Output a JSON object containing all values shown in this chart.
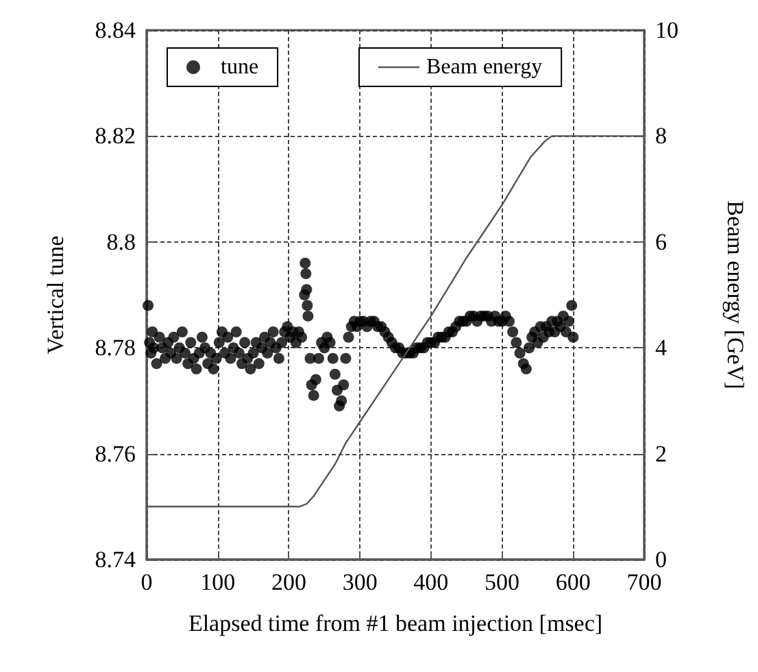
{
  "chart_data": {
    "type": "scatter",
    "xlabel": "Elapsed time from #1 beam injection [msec]",
    "ylabel": "Vertical tune",
    "y2label": "Beam energy [GeV]",
    "xlim": [
      0,
      700
    ],
    "xticks": [
      0,
      100,
      200,
      300,
      400,
      500,
      600,
      700
    ],
    "ylim": [
      8.74,
      8.84
    ],
    "yticks": [
      8.74,
      8.76,
      8.78,
      8.8,
      8.82,
      8.84
    ],
    "y2lim": [
      0,
      10
    ],
    "y2ticks": [
      0,
      2,
      4,
      6,
      8,
      10
    ],
    "grid": true,
    "legend": "top",
    "series": [
      {
        "name": "tune",
        "marker": "circle",
        "color": "#000000",
        "x": [
          2,
          4,
          6,
          8,
          10,
          14,
          18,
          22,
          26,
          30,
          34,
          38,
          42,
          46,
          50,
          54,
          58,
          62,
          66,
          70,
          74,
          78,
          82,
          86,
          90,
          94,
          98,
          102,
          106,
          110,
          114,
          118,
          122,
          126,
          130,
          134,
          138,
          142,
          146,
          150,
          154,
          158,
          162,
          166,
          170,
          174,
          178,
          182,
          186,
          190,
          194,
          198,
          202,
          206,
          210,
          214,
          218,
          222,
          223,
          224,
          225,
          226,
          227,
          230,
          232,
          235,
          238,
          242,
          246,
          250,
          254,
          258,
          262,
          265,
          268,
          271,
          274,
          277,
          280,
          284,
          288,
          292,
          296,
          300,
          305,
          310,
          315,
          320,
          325,
          330,
          335,
          340,
          345,
          350,
          355,
          360,
          365,
          370,
          375,
          380,
          385,
          390,
          395,
          400,
          405,
          410,
          415,
          420,
          425,
          430,
          435,
          440,
          445,
          450,
          455,
          460,
          465,
          470,
          475,
          480,
          485,
          490,
          495,
          500,
          505,
          510,
          515,
          520,
          525,
          530,
          534,
          538,
          542,
          546,
          550,
          554,
          558,
          562,
          566,
          570,
          574,
          578,
          582,
          586,
          590,
          594,
          598,
          600
        ],
        "values": [
          8.788,
          8.781,
          8.779,
          8.783,
          8.78,
          8.777,
          8.782,
          8.78,
          8.778,
          8.781,
          8.779,
          8.782,
          8.778,
          8.78,
          8.783,
          8.779,
          8.777,
          8.781,
          8.778,
          8.776,
          8.779,
          8.782,
          8.78,
          8.777,
          8.779,
          8.776,
          8.778,
          8.781,
          8.783,
          8.779,
          8.782,
          8.778,
          8.78,
          8.783,
          8.779,
          8.777,
          8.781,
          8.778,
          8.776,
          8.779,
          8.781,
          8.777,
          8.78,
          8.782,
          8.779,
          8.781,
          8.783,
          8.78,
          8.778,
          8.781,
          8.783,
          8.784,
          8.782,
          8.783,
          8.781,
          8.783,
          8.782,
          8.79,
          8.796,
          8.794,
          8.791,
          8.788,
          8.786,
          8.778,
          8.773,
          8.771,
          8.774,
          8.778,
          8.781,
          8.78,
          8.782,
          8.781,
          8.778,
          8.775,
          8.772,
          8.769,
          8.77,
          8.773,
          8.778,
          8.782,
          8.784,
          8.785,
          8.784,
          8.785,
          8.785,
          8.784,
          8.785,
          8.785,
          8.784,
          8.784,
          8.783,
          8.782,
          8.781,
          8.78,
          8.78,
          8.779,
          8.779,
          8.779,
          8.779,
          8.78,
          8.78,
          8.78,
          8.781,
          8.781,
          8.781,
          8.782,
          8.782,
          8.782,
          8.783,
          8.783,
          8.784,
          8.785,
          8.785,
          8.785,
          8.786,
          8.786,
          8.785,
          8.786,
          8.786,
          8.786,
          8.785,
          8.786,
          8.785,
          8.785,
          8.786,
          8.785,
          8.783,
          8.781,
          8.779,
          8.777,
          8.776,
          8.78,
          8.782,
          8.783,
          8.781,
          8.784,
          8.782,
          8.784,
          8.783,
          8.785,
          8.783,
          8.785,
          8.784,
          8.786,
          8.783,
          8.785,
          8.788,
          8.782
        ]
      },
      {
        "name": "Beam energy",
        "type": "line",
        "marker": "none",
        "axis": "y2",
        "color": "#555555",
        "x": [
          0,
          215,
          225,
          235,
          250,
          265,
          280,
          300,
          350,
          400,
          450,
          500,
          540,
          560,
          570,
          580,
          700
        ],
        "values": [
          1,
          1,
          1.05,
          1.2,
          1.5,
          1.8,
          2.2,
          2.6,
          3.6,
          4.6,
          5.7,
          6.7,
          7.6,
          7.9,
          8,
          8,
          8
        ]
      }
    ]
  }
}
